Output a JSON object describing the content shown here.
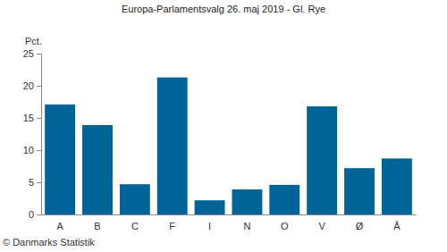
{
  "chart_data": {
    "type": "bar",
    "title": "Europa-Parlamentsvalg 26. maj 2019 - Gl. Rye",
    "ylabel": "Pct.",
    "source": "© Danmarks Statistik",
    "categories": [
      "A",
      "B",
      "C",
      "F",
      "I",
      "N",
      "O",
      "V",
      "Ø",
      "Å"
    ],
    "values": [
      17.1,
      13.9,
      4.7,
      21.3,
      2.2,
      3.9,
      4.6,
      16.8,
      7.2,
      8.7
    ],
    "color": "#006496",
    "ylim": [
      0,
      25
    ],
    "yticks": [
      0,
      5,
      10,
      15,
      20,
      25
    ],
    "grid": false
  }
}
